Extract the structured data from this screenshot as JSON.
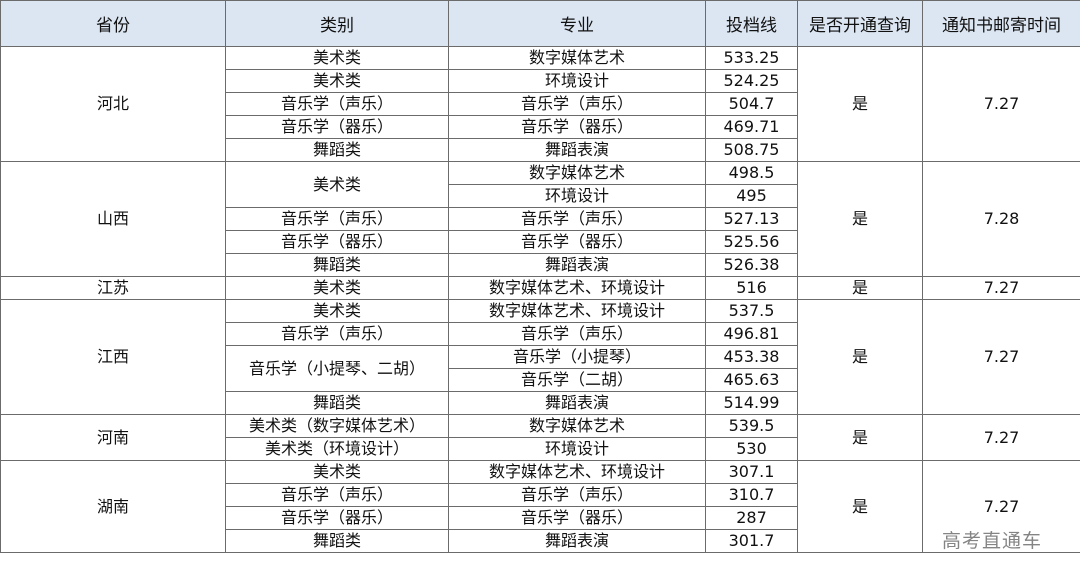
{
  "headers": [
    "省份",
    "类别",
    "专业",
    "投档线",
    "是否开通查询",
    "通知书邮寄时间"
  ],
  "provinces": [
    {
      "name": "河北",
      "query": "是",
      "mail_date": "7.27",
      "rows": [
        {
          "category": "美术类",
          "major": "数字媒体艺术",
          "score": "533.25"
        },
        {
          "category": "美术类",
          "major": "环境设计",
          "score": "524.25"
        },
        {
          "category": "音乐学（声乐）",
          "major": "音乐学（声乐）",
          "score": "504.7"
        },
        {
          "category": "音乐学（器乐）",
          "major": "音乐学（器乐）",
          "score": "469.71"
        },
        {
          "category": "舞蹈类",
          "major": "舞蹈表演",
          "score": "508.75"
        }
      ]
    },
    {
      "name": "山西",
      "query": "是",
      "mail_date": "7.28",
      "rows": [
        {
          "category": "美术类",
          "category_span": 2,
          "major": "数字媒体艺术",
          "score": "498.5"
        },
        {
          "major": "环境设计",
          "score": "495"
        },
        {
          "category": "音乐学（声乐）",
          "major": "音乐学（声乐）",
          "score": "527.13"
        },
        {
          "category": "音乐学（器乐）",
          "major": "音乐学（器乐）",
          "score": "525.56"
        },
        {
          "category": "舞蹈类",
          "major": "舞蹈表演",
          "score": "526.38"
        }
      ]
    },
    {
      "name": "江苏",
      "query": "是",
      "mail_date": "7.27",
      "rows": [
        {
          "category": "美术类",
          "major": "数字媒体艺术、环境设计",
          "score": "516"
        }
      ]
    },
    {
      "name": "江西",
      "query": "是",
      "mail_date": "7.27",
      "rows": [
        {
          "category": "美术类",
          "major": "数字媒体艺术、环境设计",
          "score": "537.5"
        },
        {
          "category": "音乐学（声乐）",
          "major": "音乐学（声乐）",
          "score": "496.81"
        },
        {
          "category": "音乐学（小提琴、二胡）",
          "category_span": 2,
          "major": "音乐学（小提琴）",
          "score": "453.38"
        },
        {
          "major": "音乐学（二胡）",
          "score": "465.63"
        },
        {
          "category": "舞蹈类",
          "major": "舞蹈表演",
          "score": "514.99"
        }
      ]
    },
    {
      "name": "河南",
      "query": "是",
      "mail_date": "7.27",
      "rows": [
        {
          "category": "美术类（数字媒体艺术）",
          "major": "数字媒体艺术",
          "score": "539.5"
        },
        {
          "category": "美术类（环境设计）",
          "major": "环境设计",
          "score": "530"
        }
      ]
    },
    {
      "name": "湖南",
      "query": "是",
      "mail_date": "7.27",
      "rows": [
        {
          "category": "美术类",
          "major": "数字媒体艺术、环境设计",
          "score": "307.1"
        },
        {
          "category": "音乐学（声乐）",
          "major": "音乐学（声乐）",
          "score": "310.7"
        },
        {
          "category": "音乐学（器乐）",
          "major": "音乐学（器乐）",
          "score": "287"
        },
        {
          "category": "舞蹈类",
          "major": "舞蹈表演",
          "score": "301.7"
        }
      ]
    }
  ],
  "watermark": "高考直通车"
}
